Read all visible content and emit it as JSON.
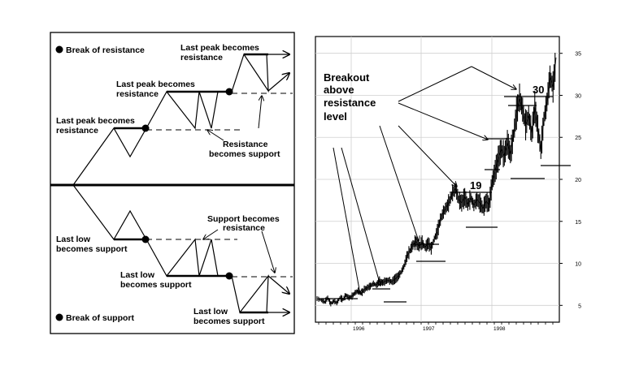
{
  "chart_data": [
    {
      "type": "diagram",
      "legend": {
        "resistance_break": "Break of resistance",
        "support_break": "Break of support"
      },
      "annotations": {
        "peak1": [
          "Last peak becomes",
          "resistance"
        ],
        "peak2": [
          "Last peak becomes",
          "resistance"
        ],
        "peak3": [
          "Last peak becomes",
          "resistance"
        ],
        "res_support": [
          "Resistance",
          "becomes support"
        ],
        "low1": [
          "Last low",
          "becomes support"
        ],
        "low2": [
          "Last low",
          "becomes support"
        ],
        "low3": [
          "Last low",
          "becomes support"
        ],
        "sup_resist": [
          "Support becomes",
          "resistance"
        ]
      }
    },
    {
      "type": "line",
      "x_ticks": [
        "1996",
        "1997",
        "1998"
      ],
      "y_ticks": [
        5,
        10,
        15,
        20,
        25,
        30,
        35
      ],
      "ylim": [
        3,
        37
      ],
      "grid": true,
      "annotation": [
        "Breakout",
        "above",
        "resistance",
        "level"
      ],
      "resistance_labels": [
        {
          "text": "19",
          "value": 19
        },
        {
          "text": "30",
          "value": 30
        }
      ],
      "series": [
        {
          "values": [
            [
              0,
              5.8
            ],
            [
              6,
              5.6
            ],
            [
              10,
              5.4
            ],
            [
              14,
              5.9
            ],
            [
              18,
              5.2
            ],
            [
              22,
              5.5
            ],
            [
              26,
              5.3
            ],
            [
              30,
              5.9
            ],
            [
              34,
              5.7
            ],
            [
              38,
              6.2
            ],
            [
              42,
              5.9
            ],
            [
              46,
              6.1
            ],
            [
              50,
              6.5
            ],
            [
              54,
              6.7
            ],
            [
              58,
              6.4
            ],
            [
              62,
              6.9
            ],
            [
              66,
              7.1
            ],
            [
              70,
              7.3
            ],
            [
              74,
              7.6
            ],
            [
              78,
              7.4
            ],
            [
              82,
              7.9
            ],
            [
              86,
              7.7
            ],
            [
              90,
              7.9
            ],
            [
              94,
              8.0
            ],
            [
              98,
              7.8
            ],
            [
              102,
              8.1
            ],
            [
              106,
              8.4
            ],
            [
              110,
              8.9
            ],
            [
              114,
              9.6
            ],
            [
              118,
              10.8
            ],
            [
              122,
              11.5
            ],
            [
              126,
              12.2
            ],
            [
              130,
              12.6
            ],
            [
              134,
              12.0
            ],
            [
              138,
              12.5
            ],
            [
              142,
              11.9
            ],
            [
              146,
              12.4
            ],
            [
              150,
              11.8
            ],
            [
              154,
              12.9
            ],
            [
              158,
              13.8
            ],
            [
              162,
              15.2
            ],
            [
              166,
              16.1
            ],
            [
              170,
              16.7
            ],
            [
              174,
              17.4
            ],
            [
              178,
              18.4
            ],
            [
              182,
              18.9
            ],
            [
              186,
              17.6
            ],
            [
              190,
              17.2
            ],
            [
              194,
              17.9
            ],
            [
              198,
              17.0
            ],
            [
              202,
              17.8
            ],
            [
              206,
              16.9
            ],
            [
              210,
              17.6
            ],
            [
              214,
              17.2
            ],
            [
              218,
              16.5
            ],
            [
              222,
              17.4
            ],
            [
              226,
              17.0
            ],
            [
              230,
              19.6
            ],
            [
              234,
              21.0
            ],
            [
              238,
              22.4
            ],
            [
              242,
              23.6
            ],
            [
              246,
              22.8
            ],
            [
              250,
              24.4
            ],
            [
              254,
              23.0
            ],
            [
              258,
              25.2
            ],
            [
              262,
              27.9
            ],
            [
              266,
              29.7
            ],
            [
              270,
              28.3
            ],
            [
              274,
              26.5
            ],
            [
              278,
              27.6
            ],
            [
              282,
              25.4
            ],
            [
              286,
              28.6
            ],
            [
              290,
              26.0
            ],
            [
              294,
              23.5
            ],
            [
              298,
              27.2
            ],
            [
              302,
              29.2
            ],
            [
              306,
              32.2
            ],
            [
              310,
              31.0
            ],
            [
              314,
              34.5
            ]
          ]
        }
      ]
    }
  ]
}
